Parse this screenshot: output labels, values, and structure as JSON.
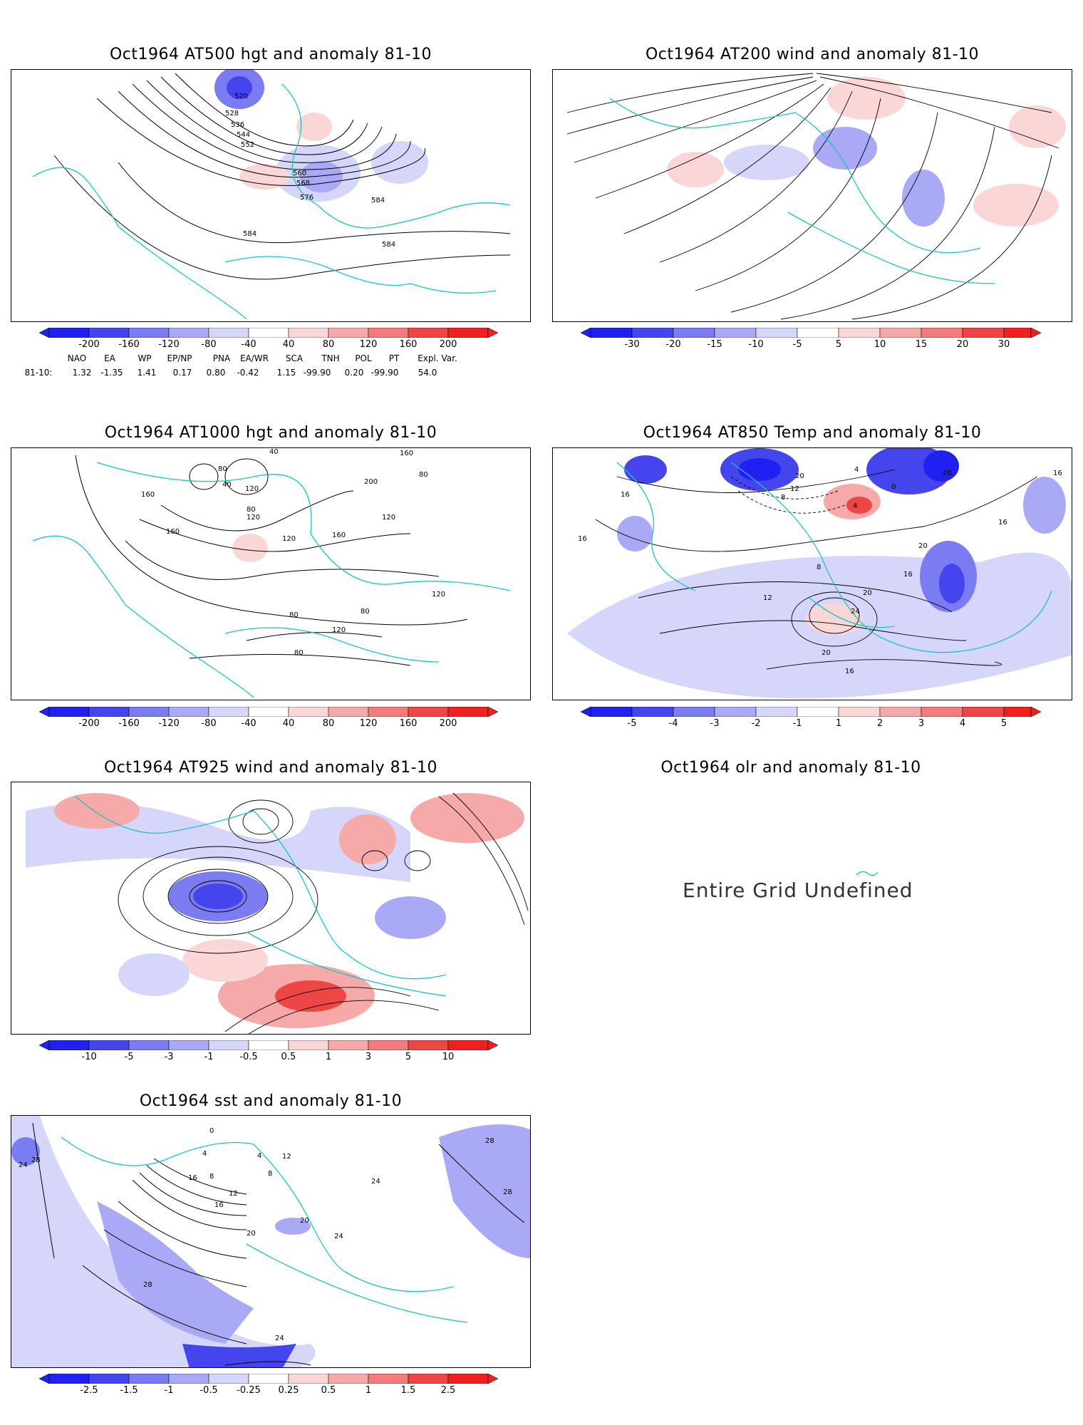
{
  "panels": {
    "p1": {
      "title": "Oct1964 AT500 hgt and anomaly 81-10",
      "contours": [
        "520",
        "528",
        "536",
        "544",
        "552",
        "560",
        "568",
        "576",
        "584",
        "584",
        "584"
      ]
    },
    "p2": {
      "title": "Oct1964 AT200 wind and anomaly 81-10"
    },
    "p3": {
      "title": "Oct1964 AT1000 hgt and anomaly 81-10",
      "contours": [
        "40",
        "80",
        "40",
        "120",
        "160",
        "200",
        "160",
        "80",
        "120",
        "160",
        "120",
        "80",
        "120",
        "160",
        "120",
        "80",
        "80",
        "120",
        "80"
      ]
    },
    "p4": {
      "title": "Oct1964 AT850 Temp and anomaly 81-10",
      "contours": [
        "16",
        "20",
        "12",
        "8",
        "4",
        "0",
        "4",
        "20",
        "16",
        "16",
        "8",
        "16",
        "12",
        "24",
        "20",
        "20",
        "16",
        "20",
        "16"
      ]
    },
    "p5": {
      "title": "Oct1964 AT925 wind and anomaly 81-10"
    },
    "p6": {
      "title": "Oct1964 olr and anomaly 81-10",
      "message": "Entire Grid Undefined"
    },
    "p7": {
      "title": "Oct1964 sst and anomaly 81-10",
      "contours": [
        "28",
        "24",
        "28",
        "0",
        "4",
        "8",
        "4",
        "8",
        "12",
        "16",
        "20",
        "20",
        "24",
        "24",
        "28",
        "28",
        "24",
        "12",
        "16"
      ]
    }
  },
  "colorbars": {
    "hgt500": [
      "-200",
      "-160",
      "-120",
      "-80",
      "-40",
      "40",
      "80",
      "120",
      "160",
      "200"
    ],
    "wind200": [
      "-30",
      "-20",
      "-15",
      "-10",
      "-5",
      "5",
      "10",
      "15",
      "20",
      "30"
    ],
    "hgt1000": [
      "-200",
      "-160",
      "-120",
      "-80",
      "-40",
      "40",
      "80",
      "120",
      "160",
      "200"
    ],
    "temp850": [
      "-5",
      "-4",
      "-3",
      "-2",
      "-1",
      "1",
      "2",
      "3",
      "4",
      "5"
    ],
    "wind925": [
      "-10",
      "-5",
      "-3",
      "-1",
      "-0.5",
      "0.5",
      "1",
      "3",
      "5",
      "10"
    ],
    "sst": [
      "-2.5",
      "-1.5",
      "-1",
      "-0.5",
      "-0.25",
      "0.25",
      "0.5",
      "1",
      "1.5",
      "2.5"
    ]
  },
  "colors": {
    "blue": [
      "#2020f0",
      "#4545ee",
      "#7b7bf2",
      "#a9a9f5",
      "#d6d6fa"
    ],
    "red": [
      "#fad6d6",
      "#f5a9a9",
      "#f27b7b",
      "#ee4545",
      "#f02020"
    ],
    "coast": "#1cc3c3",
    "contour": "#000000"
  },
  "indices": {
    "headers": [
      "NAO",
      "EA",
      "WP",
      "EP/NP",
      "PNA",
      "EA/WR",
      "SCA",
      "TNH",
      "POL",
      "PT",
      "Expl. Var."
    ],
    "row_label": "81-10:",
    "values": [
      "1.32",
      "-1.35",
      "1.41",
      "0.17",
      "0.80",
      "-0.42",
      "1.15",
      "-99.90",
      "0.20",
      "-99.90",
      "54.0"
    ]
  }
}
